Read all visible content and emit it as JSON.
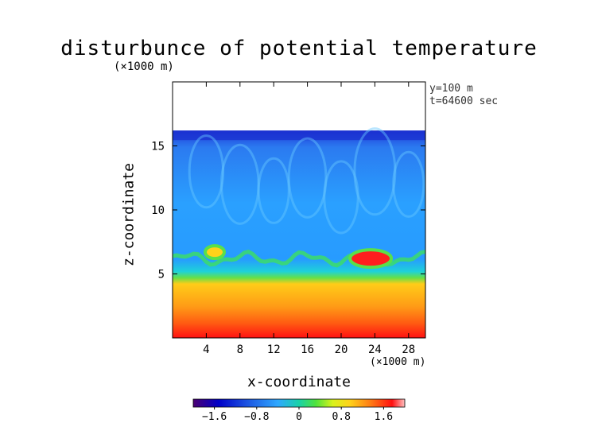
{
  "chart_data": {
    "type": "heatmap",
    "title": "disturbunce of potential temperature",
    "xlabel": "x-coordinate",
    "ylabel": "z-coordinate",
    "x_unit": "(×1000 m)",
    "z_unit": "(×1000 m)",
    "annotations": [
      "y=100 m",
      "t=64600 sec"
    ],
    "xlim": [
      0,
      30
    ],
    "ylim": [
      0,
      20
    ],
    "x_ticks": [
      4,
      8,
      12,
      16,
      20,
      24,
      28
    ],
    "y_ticks": [
      5,
      10,
      15
    ],
    "domain_top": 16.2,
    "colorbar": {
      "range": [
        -2.0,
        2.0
      ],
      "tick_labels": [
        "−1.6",
        "−0.8",
        "0",
        "0.8",
        "1.6"
      ],
      "tick_values": [
        -1.6,
        -0.8,
        0,
        0.8,
        1.6
      ]
    },
    "features": {
      "upper_layer_value": -1.2,
      "lower_layer_value": 1.5,
      "interface_height": 6.2,
      "warm_blobs": [
        {
          "x": 5,
          "z": 6.7,
          "value": 0.6
        },
        {
          "x": 23.5,
          "z": 6.2,
          "value": 1.6
        }
      ]
    }
  }
}
